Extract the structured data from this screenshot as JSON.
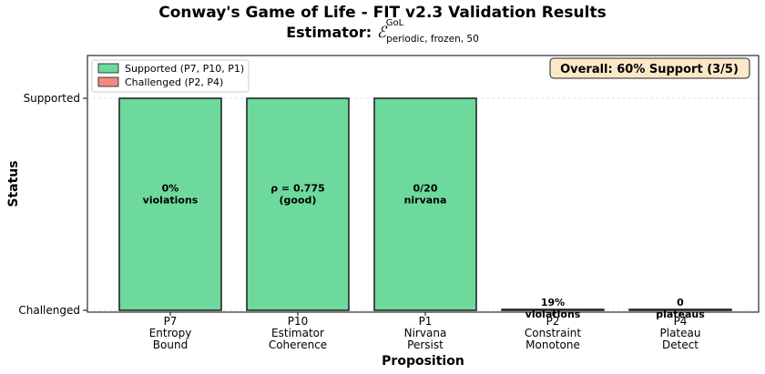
{
  "chart_data": {
    "type": "bar",
    "title": "Conway's Game of Life - FIT v2.3 Validation Results",
    "subtitle_prefix": "Estimator:",
    "estimator_symbol": "ℰ",
    "estimator_superscript": "GoL",
    "estimator_subscript": "periodic, frozen, 50",
    "xlabel": "Proposition",
    "ylabel": "Status",
    "y_ticks": [
      {
        "value": 1,
        "label": "Supported"
      },
      {
        "value": 0,
        "label": "Challenged"
      }
    ],
    "ylim": [
      0,
      1.2
    ],
    "grid": "horizontal dashed",
    "categories": [
      {
        "id": "P7",
        "line1": "Entropy",
        "line2": "Bound",
        "value": 1,
        "status": "Supported",
        "annotation": [
          "0%",
          "violations"
        ]
      },
      {
        "id": "P10",
        "line1": "Estimator",
        "line2": "Coherence",
        "value": 1,
        "status": "Supported",
        "annotation": [
          "ρ = 0.775",
          "(good)"
        ]
      },
      {
        "id": "P1",
        "line1": "Nirvana",
        "line2": "Persist",
        "value": 1,
        "status": "Supported",
        "annotation": [
          "0/20",
          "nirvana"
        ]
      },
      {
        "id": "P2",
        "line1": "Constraint",
        "line2": "Monotone",
        "value": 0,
        "status": "Challenged",
        "annotation": [
          "19%",
          "violations"
        ]
      },
      {
        "id": "P4",
        "line1": "Plateau",
        "line2": "Detect",
        "value": 0,
        "status": "Challenged",
        "annotation": [
          "0",
          "plateaus"
        ]
      }
    ],
    "legend": {
      "position": "top-left",
      "entries": [
        {
          "label": "Supported (P7, P10, P1)",
          "color": "#6dd99c"
        },
        {
          "label": "Challenged (P2, P4)",
          "color": "#f08a7e"
        }
      ]
    },
    "summary_box": {
      "text": "Overall: 60% Support (3/5)",
      "position": "top-right",
      "background": "#fbe8c8"
    },
    "colors": {
      "supported": "#6dd99c",
      "challenged": "#f08a7e",
      "edge": "#1a1a1a"
    }
  }
}
